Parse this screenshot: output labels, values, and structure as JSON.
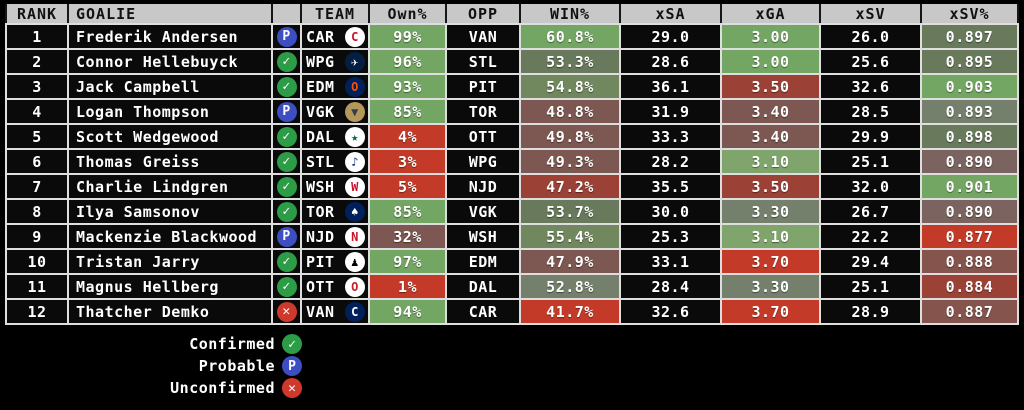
{
  "palette": {
    "green": "#74a663",
    "lightgreen": "#80a56c",
    "sage": "#68795c",
    "sage_green": "#71875e",
    "graysage": "#75806c",
    "mauve": "#7b6460",
    "redgray": "#7d5751",
    "redbrown": "#84544d",
    "brick": "#9c4136",
    "red": "#c33b28",
    "row_bg": "#0a0a0a",
    "header_bg": "#c8c8c8"
  },
  "status_icons": {
    "confirmed": {
      "label": "Confirmed",
      "glyph": "✓",
      "bg": "#2d9c47"
    },
    "probable": {
      "label": "Probable",
      "glyph": "P",
      "bg": "#3c4ec1"
    },
    "unconfirmed": {
      "label": "Unconfirmed",
      "glyph": "✕",
      "bg": "#cf392b"
    }
  },
  "legend_order": [
    "confirmed",
    "probable",
    "unconfirmed"
  ],
  "chart_data": {
    "type": "table",
    "headers": [
      "RANK",
      "GOALIE",
      "",
      "TEAM",
      "Own%",
      "OPP",
      "WIN%",
      "xSA",
      "xGA",
      "xSV",
      "xSV%"
    ],
    "rows": [
      {
        "rank": "1",
        "goalie": "Frederik Andersen",
        "status": "probable",
        "team": "CAR",
        "opp": "VAN",
        "own": {
          "v": "99%",
          "c": "green"
        },
        "win": {
          "v": "60.8%",
          "c": "green"
        },
        "xsa": "29.0",
        "xga": {
          "v": "3.00",
          "c": "green"
        },
        "xsv": "26.0",
        "xsv_pct": {
          "v": "0.897",
          "c": "sage"
        },
        "logo": {
          "bg": "#ffffff",
          "fg": "#c8102e",
          "glyph": "C"
        }
      },
      {
        "rank": "2",
        "goalie": "Connor Hellebuyck",
        "status": "confirmed",
        "team": "WPG",
        "opp": "STL",
        "own": {
          "v": "96%",
          "c": "green"
        },
        "win": {
          "v": "53.3%",
          "c": "sage"
        },
        "xsa": "28.6",
        "xga": {
          "v": "3.00",
          "c": "green"
        },
        "xsv": "25.6",
        "xsv_pct": {
          "v": "0.895",
          "c": "sage"
        },
        "logo": {
          "bg": "#041e42",
          "fg": "#ffffff",
          "glyph": "✈"
        }
      },
      {
        "rank": "3",
        "goalie": "Jack Campbell",
        "status": "confirmed",
        "team": "EDM",
        "opp": "PIT",
        "own": {
          "v": "93%",
          "c": "green"
        },
        "win": {
          "v": "54.8%",
          "c": "sage_green"
        },
        "xsa": "36.1",
        "xga": {
          "v": "3.50",
          "c": "brick"
        },
        "xsv": "32.6",
        "xsv_pct": {
          "v": "0.903",
          "c": "green"
        },
        "logo": {
          "bg": "#00205b",
          "fg": "#ff4c00",
          "glyph": "O"
        }
      },
      {
        "rank": "4",
        "goalie": "Logan Thompson",
        "status": "probable",
        "team": "VGK",
        "opp": "TOR",
        "own": {
          "v": "85%",
          "c": "green"
        },
        "win": {
          "v": "48.8%",
          "c": "redgray"
        },
        "xsa": "31.9",
        "xga": {
          "v": "3.40",
          "c": "redgray"
        },
        "xsv": "28.5",
        "xsv_pct": {
          "v": "0.893",
          "c": "graysage"
        },
        "logo": {
          "bg": "#b4975a",
          "fg": "#333f48",
          "glyph": "▼"
        }
      },
      {
        "rank": "5",
        "goalie": "Scott Wedgewood",
        "status": "confirmed",
        "team": "DAL",
        "opp": "OTT",
        "own": {
          "v": "4%",
          "c": "red"
        },
        "win": {
          "v": "49.8%",
          "c": "redgray"
        },
        "xsa": "33.3",
        "xga": {
          "v": "3.40",
          "c": "redgray"
        },
        "xsv": "29.9",
        "xsv_pct": {
          "v": "0.898",
          "c": "sage"
        },
        "logo": {
          "bg": "#ffffff",
          "fg": "#006847",
          "glyph": "★"
        }
      },
      {
        "rank": "6",
        "goalie": "Thomas Greiss",
        "status": "confirmed",
        "team": "STL",
        "opp": "WPG",
        "own": {
          "v": "3%",
          "c": "red"
        },
        "win": {
          "v": "49.3%",
          "c": "redgray"
        },
        "xsa": "28.2",
        "xga": {
          "v": "3.10",
          "c": "lightgreen"
        },
        "xsv": "25.1",
        "xsv_pct": {
          "v": "0.890",
          "c": "mauve"
        },
        "logo": {
          "bg": "#ffffff",
          "fg": "#003087",
          "glyph": "♪"
        }
      },
      {
        "rank": "7",
        "goalie": "Charlie Lindgren",
        "status": "confirmed",
        "team": "WSH",
        "opp": "NJD",
        "own": {
          "v": "5%",
          "c": "red"
        },
        "win": {
          "v": "47.2%",
          "c": "brick"
        },
        "xsa": "35.5",
        "xga": {
          "v": "3.50",
          "c": "brick"
        },
        "xsv": "32.0",
        "xsv_pct": {
          "v": "0.901",
          "c": "green"
        },
        "logo": {
          "bg": "#ffffff",
          "fg": "#c8102e",
          "glyph": "W"
        }
      },
      {
        "rank": "8",
        "goalie": "Ilya Samsonov",
        "status": "confirmed",
        "team": "TOR",
        "opp": "VGK",
        "own": {
          "v": "85%",
          "c": "green"
        },
        "win": {
          "v": "53.7%",
          "c": "sage"
        },
        "xsa": "30.0",
        "xga": {
          "v": "3.30",
          "c": "graysage"
        },
        "xsv": "26.7",
        "xsv_pct": {
          "v": "0.890",
          "c": "mauve"
        },
        "logo": {
          "bg": "#00205b",
          "fg": "#ffffff",
          "glyph": "♠"
        }
      },
      {
        "rank": "9",
        "goalie": "Mackenzie Blackwood",
        "status": "probable",
        "team": "NJD",
        "opp": "WSH",
        "own": {
          "v": "32%",
          "c": "redgray"
        },
        "win": {
          "v": "55.4%",
          "c": "sage_green"
        },
        "xsa": "25.3",
        "xga": {
          "v": "3.10",
          "c": "lightgreen"
        },
        "xsv": "22.2",
        "xsv_pct": {
          "v": "0.877",
          "c": "red"
        },
        "logo": {
          "bg": "#ffffff",
          "fg": "#ce1126",
          "glyph": "N"
        }
      },
      {
        "rank": "10",
        "goalie": "Tristan Jarry",
        "status": "confirmed",
        "team": "PIT",
        "opp": "EDM",
        "own": {
          "v": "97%",
          "c": "green"
        },
        "win": {
          "v": "47.9%",
          "c": "redgray"
        },
        "xsa": "33.1",
        "xga": {
          "v": "3.70",
          "c": "red"
        },
        "xsv": "29.4",
        "xsv_pct": {
          "v": "0.888",
          "c": "redbrown"
        },
        "logo": {
          "bg": "#ffffff",
          "fg": "#000000",
          "glyph": "♟"
        }
      },
      {
        "rank": "11",
        "goalie": "Magnus Hellberg",
        "status": "confirmed",
        "team": "OTT",
        "opp": "DAL",
        "own": {
          "v": "1%",
          "c": "red"
        },
        "win": {
          "v": "52.8%",
          "c": "graysage"
        },
        "xsa": "28.4",
        "xga": {
          "v": "3.30",
          "c": "graysage"
        },
        "xsv": "25.1",
        "xsv_pct": {
          "v": "0.884",
          "c": "brick"
        },
        "logo": {
          "bg": "#ffffff",
          "fg": "#c52032",
          "glyph": "O"
        }
      },
      {
        "rank": "12",
        "goalie": "Thatcher Demko",
        "status": "unconfirmed",
        "team": "VAN",
        "opp": "CAR",
        "own": {
          "v": "94%",
          "c": "green"
        },
        "win": {
          "v": "41.7%",
          "c": "red"
        },
        "xsa": "32.6",
        "xga": {
          "v": "3.70",
          "c": "red"
        },
        "xsv": "28.9",
        "xsv_pct": {
          "v": "0.887",
          "c": "redbrown"
        },
        "logo": {
          "bg": "#00205b",
          "fg": "#ffffff",
          "glyph": "C"
        }
      }
    ]
  }
}
